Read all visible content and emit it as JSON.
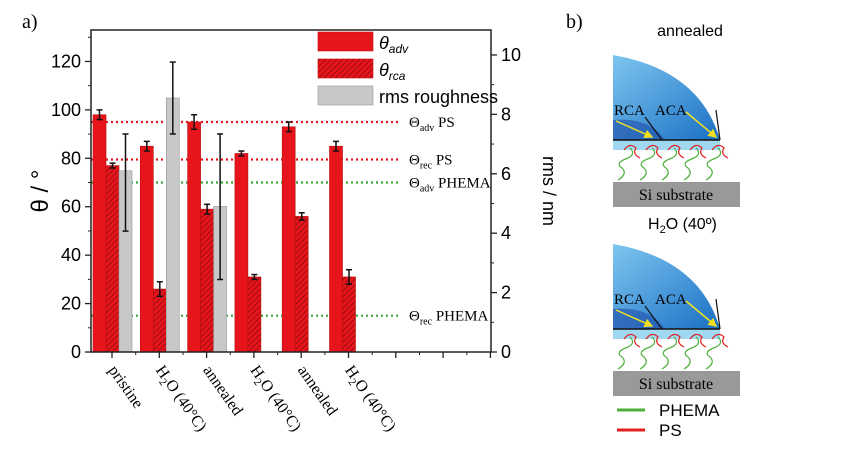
{
  "panel_a_label": "a)",
  "panel_b_label": "b)",
  "chart_data": {
    "type": "bar",
    "categories": [
      "pristine",
      "H2O (40°C)",
      "annealed",
      "H2O (40°C)",
      "annealed",
      "H2O (40°C)"
    ],
    "category_labels": [
      {
        "main": "pristine",
        "sub": "",
        "rest": ""
      },
      {
        "main": "H",
        "sub": "2",
        "rest": "O (40°C)"
      },
      {
        "main": "annealed",
        "sub": "",
        "rest": ""
      },
      {
        "main": "H",
        "sub": "2",
        "rest": "O (40°C)"
      },
      {
        "main": "annealed",
        "sub": "",
        "rest": ""
      },
      {
        "main": "H",
        "sub": "2",
        "rest": "O (40°C)"
      }
    ],
    "ylabel": "θ / °",
    "y2label": "rms / nm",
    "ylim": [
      0,
      133
    ],
    "y2lim": [
      0,
      10.84
    ],
    "yticks": [
      0,
      20,
      40,
      60,
      80,
      100,
      120
    ],
    "y2ticks": [
      0,
      2,
      4,
      6,
      8,
      10
    ],
    "series": [
      {
        "name": "θadv",
        "name_main": "θ",
        "name_sub": "adv",
        "axis": "left",
        "color": "#e8141c",
        "pattern": "solid",
        "values": [
          98,
          85,
          95,
          82,
          93,
          85
        ],
        "errors": [
          2,
          2,
          3,
          1,
          2,
          2
        ]
      },
      {
        "name": "θrca",
        "name_main": "θ",
        "name_sub": "rca",
        "axis": "left",
        "color": "#e8141c",
        "pattern": "hatched",
        "values": [
          77,
          26,
          59,
          31,
          56,
          31
        ],
        "errors": [
          1,
          3,
          2,
          1,
          1.5,
          3
        ]
      },
      {
        "name": "rms roughness",
        "name_main": "rms roughness",
        "name_sub": "",
        "axis": "right",
        "color": "#c8c8c8",
        "pattern": "solid",
        "values": [
          6.1,
          8.55,
          4.9,
          null,
          null,
          null
        ],
        "err_low": [
          4.07,
          7.34,
          2.44,
          null,
          null,
          null
        ],
        "err_high": [
          7.34,
          9.76,
          7.34,
          null,
          null,
          null
        ]
      }
    ],
    "reference_lines": [
      {
        "label_main": "Θ",
        "label_sub": "adv",
        "label_rest": " PS",
        "value": 95,
        "color": "#e8141c"
      },
      {
        "label_main": "Θ",
        "label_sub": "rec",
        "label_rest": " PS",
        "value": 79.5,
        "color": "#e8141c"
      },
      {
        "label_main": "Θ",
        "label_sub": "adv",
        "label_rest": " PHEMA",
        "value": 70,
        "color": "#3aa83a"
      },
      {
        "label_main": "Θ",
        "label_sub": "rec",
        "label_rest": " PHEMA",
        "value": 15,
        "color": "#3aa83a"
      }
    ],
    "legend_position": "top-right"
  },
  "diagram": {
    "top_title": "annealed",
    "bottom_title_main": "H",
    "bottom_title_sub": "2",
    "bottom_title_rest": "O (40º)",
    "rca": "RCA",
    "aca": "ACA",
    "substrate": "Si substrate",
    "legend": [
      {
        "label": "PHEMA",
        "color": "#4caf3a"
      },
      {
        "label": "PS",
        "color": "#e02020"
      }
    ]
  }
}
